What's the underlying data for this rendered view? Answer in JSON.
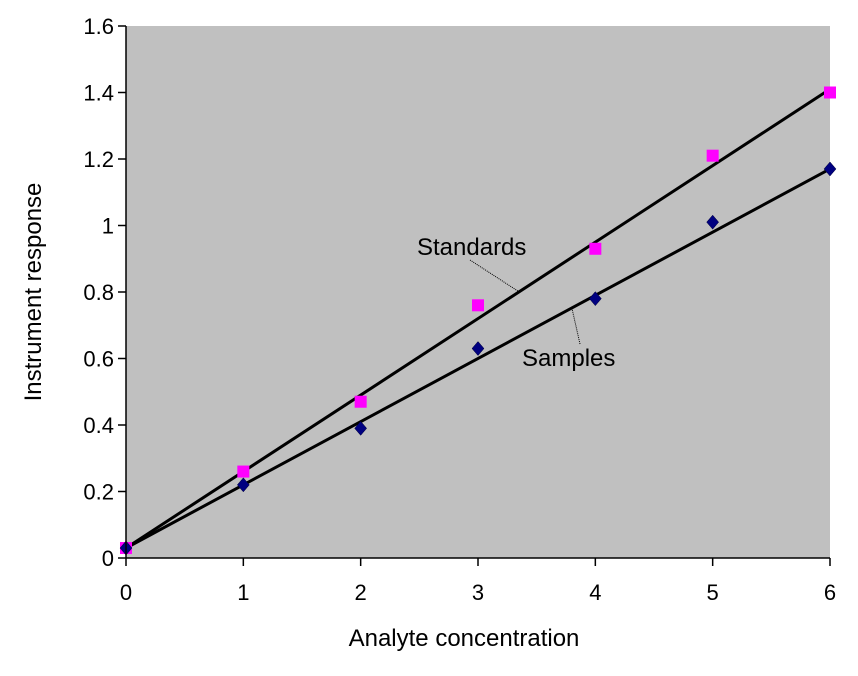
{
  "chart_data": {
    "type": "scatter",
    "title": "",
    "xlabel": "Analyte concentration",
    "ylabel": "Instrument response",
    "xlim": [
      0,
      6
    ],
    "ylim": [
      0,
      1.6
    ],
    "x_ticks": [
      "0",
      "1",
      "2",
      "3",
      "4",
      "5",
      "6"
    ],
    "y_ticks": [
      "0",
      "0.2",
      "0.4",
      "0.6",
      "0.8",
      "1",
      "1.2",
      "1.4",
      "1.6"
    ],
    "grid": false,
    "plot_background": "#c0c0c0",
    "series": [
      {
        "name": "Standards",
        "marker": "square",
        "color": "#ff00ff",
        "x": [
          0,
          1,
          2,
          3,
          4,
          5,
          6
        ],
        "y": [
          0.03,
          0.26,
          0.47,
          0.76,
          0.93,
          1.21,
          1.4
        ],
        "trendline": {
          "intercept": 0.03,
          "slope": 0.23
        }
      },
      {
        "name": "Samples",
        "marker": "diamond",
        "color": "#000080",
        "x": [
          0,
          1,
          2,
          3,
          4,
          5,
          6
        ],
        "y": [
          0.03,
          0.22,
          0.39,
          0.63,
          0.78,
          1.01,
          1.17
        ],
        "trendline": {
          "intercept": 0.03,
          "slope": 0.19
        }
      }
    ],
    "annotations": [
      {
        "text": "Standards",
        "points_to": "Standards"
      },
      {
        "text": "Samples",
        "points_to": "Samples"
      }
    ]
  }
}
